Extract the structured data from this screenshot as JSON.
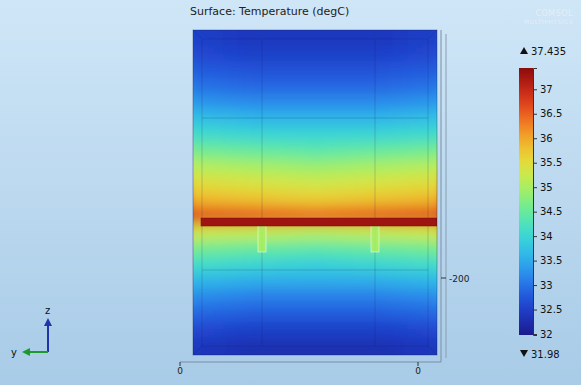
{
  "chart_data": {
    "type": "heatmap",
    "title": "Surface: Temperature (degC)",
    "logo": [
      "COMSOL",
      "MULTIPHYSICS"
    ],
    "cells": [
      [
        32.7,
        32.5,
        32.4,
        32.4,
        32.4,
        32.5,
        32.7
      ],
      [
        32.8,
        32.6,
        32.5,
        32.5,
        32.5,
        32.6,
        32.8
      ],
      [
        33.0,
        32.8,
        32.7,
        32.7,
        32.7,
        32.8,
        33.0
      ],
      [
        33.3,
        33.0,
        32.9,
        32.9,
        32.9,
        33.0,
        33.3
      ],
      [
        33.6,
        33.3,
        33.2,
        33.2,
        33.2,
        33.3,
        33.6
      ],
      [
        34.0,
        33.7,
        33.6,
        33.6,
        33.6,
        33.7,
        34.0
      ],
      [
        34.4,
        34.1,
        34.0,
        34.0,
        34.0,
        34.1,
        34.4
      ],
      [
        34.9,
        34.6,
        34.5,
        34.4,
        34.5,
        34.6,
        34.9
      ],
      [
        35.4,
        35.1,
        35.0,
        34.9,
        35.0,
        35.1,
        35.4
      ],
      [
        35.9,
        35.5,
        35.4,
        35.3,
        35.4,
        35.5,
        35.9
      ],
      [
        36.4,
        35.9,
        35.8,
        35.7,
        35.8,
        35.9,
        36.4
      ],
      [
        37.0,
        36.7,
        36.6,
        36.5,
        36.6,
        36.7,
        37.0
      ],
      [
        35.8,
        35.3,
        35.2,
        35.1,
        35.2,
        35.3,
        35.8
      ],
      [
        35.0,
        34.6,
        34.5,
        34.4,
        34.5,
        34.6,
        35.0
      ],
      [
        34.4,
        34.1,
        34.0,
        33.9,
        34.0,
        34.1,
        34.4
      ],
      [
        33.8,
        33.6,
        33.5,
        33.5,
        33.5,
        33.6,
        33.8
      ],
      [
        33.4,
        33.2,
        33.1,
        33.1,
        33.1,
        33.2,
        33.4
      ],
      [
        33.0,
        32.9,
        32.8,
        32.8,
        32.8,
        32.9,
        33.0
      ],
      [
        32.7,
        32.6,
        32.5,
        32.5,
        32.5,
        32.6,
        32.7
      ],
      [
        32.5,
        32.4,
        32.3,
        32.3,
        32.3,
        32.4,
        32.5
      ]
    ],
    "heater_temperature": 37.3,
    "support_temperature": 35.0,
    "colorbar_range": [
      31.98,
      37.435
    ],
    "colorbar_ticks": [
      32,
      32.5,
      33,
      33.5,
      34,
      34.5,
      35,
      35.5,
      36,
      36.5,
      37
    ],
    "box_ticks": [
      0,
      0,
      -200
    ],
    "triad_labels": [
      "y",
      "z"
    ]
  }
}
